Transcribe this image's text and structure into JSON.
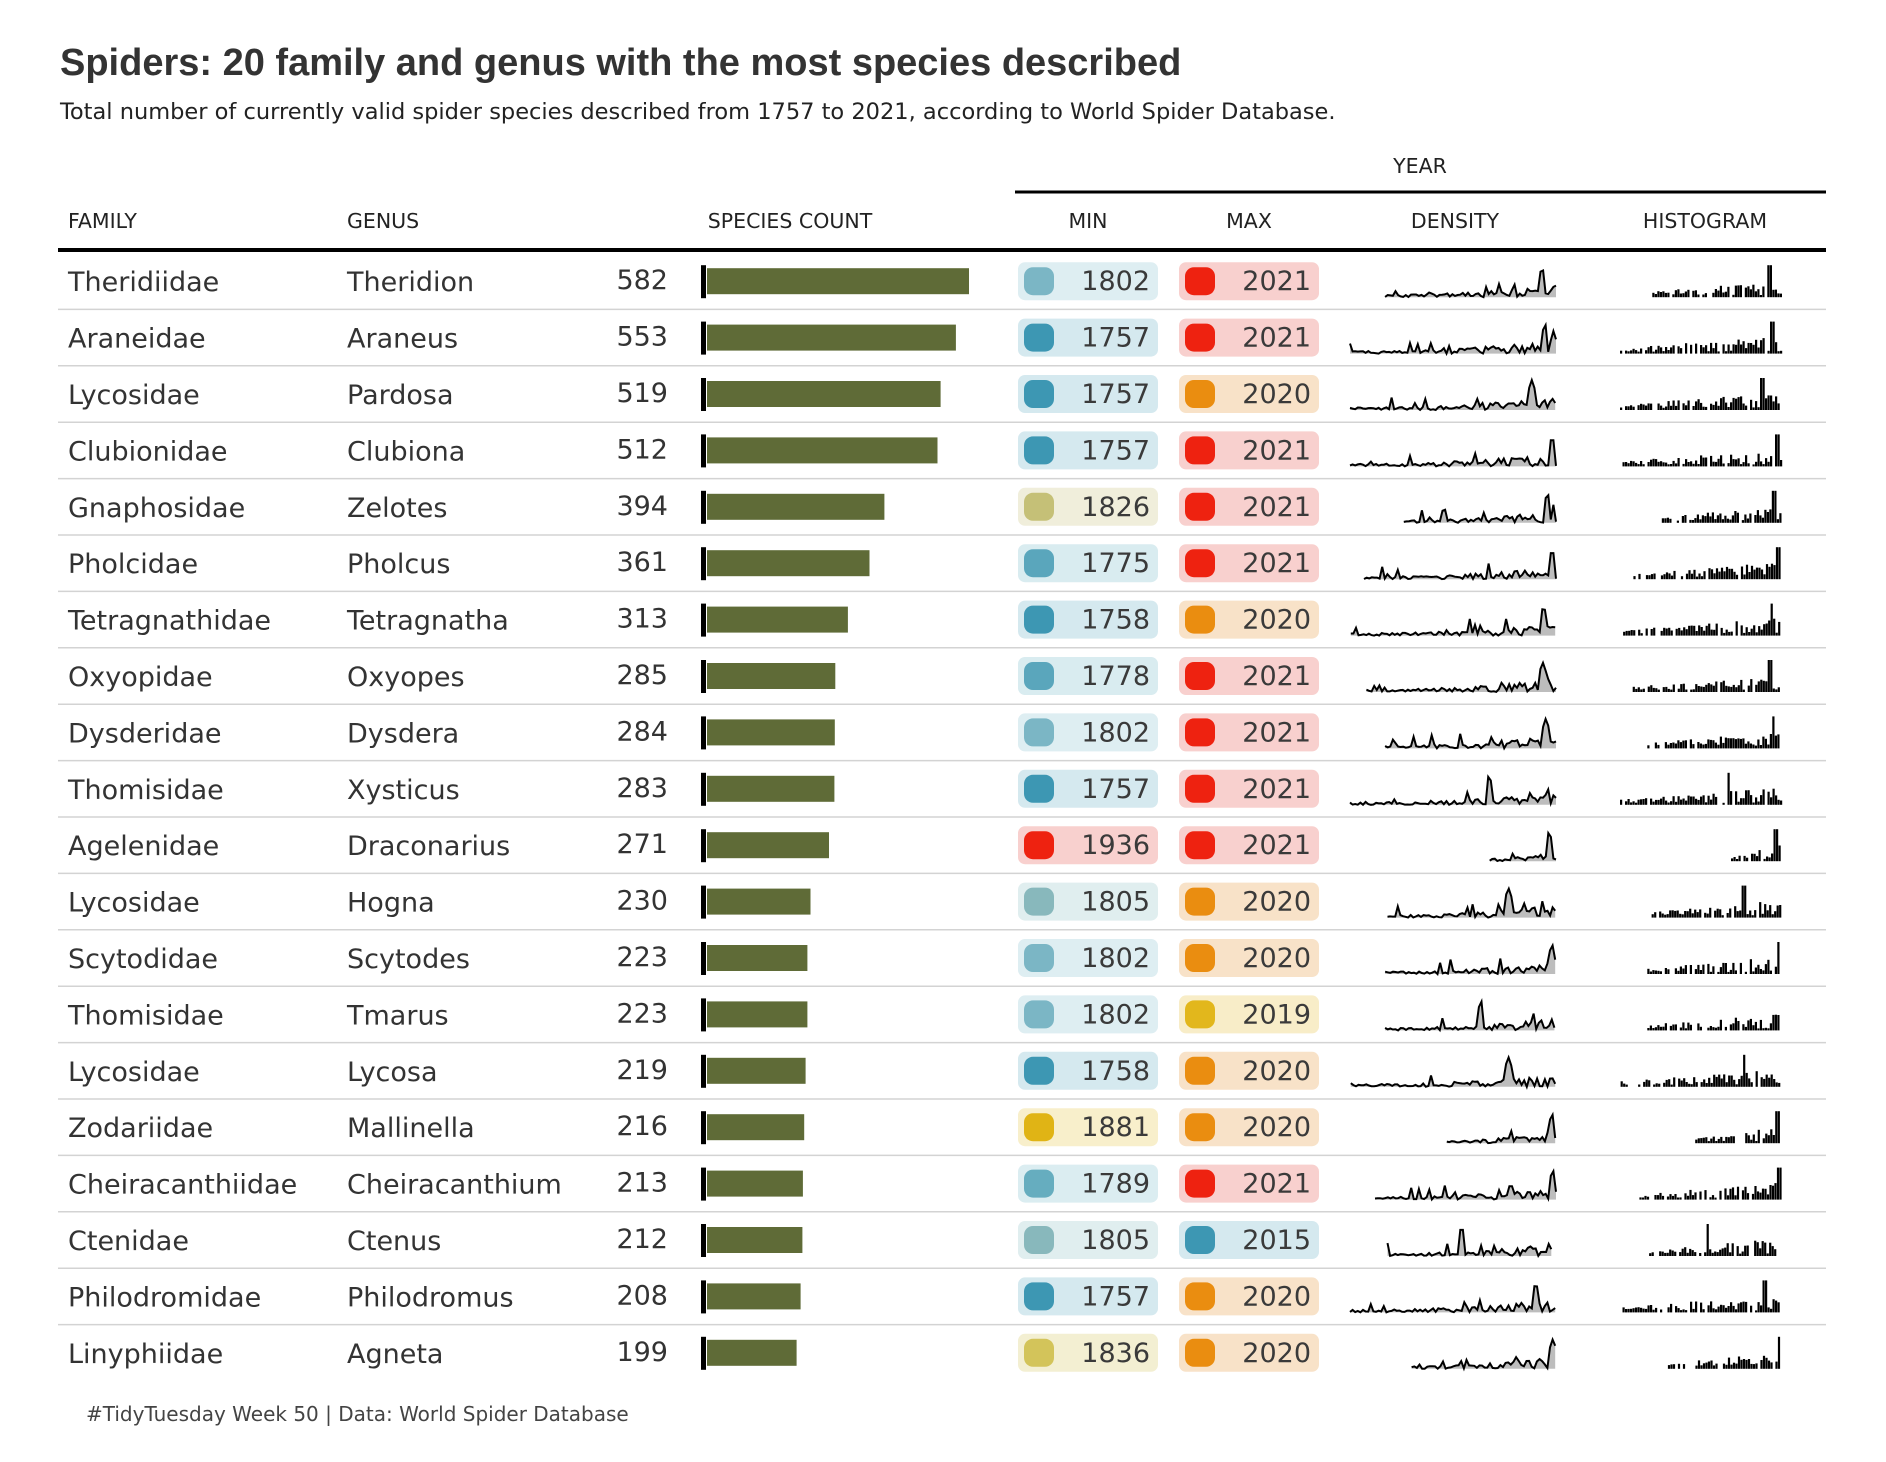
{
  "title": "Spiders: 20 family and genus with the most species described",
  "subtitle": "Total number of currently valid spider species described from 1757 to 2021, according to World Spider Database.",
  "caption": "#TidyTuesday Week 50 | Data: World Spider Database",
  "header": {
    "spanner": "YEAR",
    "family": "FAMILY",
    "genus": "GENUS",
    "species_count": "SPECIES COUNT",
    "min": "MIN",
    "max": "MAX",
    "density": "DENSITY",
    "histogram": "HISTOGRAM"
  },
  "colors": {
    "bar": "#5f6b37",
    "rule": "#000000",
    "row_line": "#d3d3d3",
    "spark": "#000000",
    "density_fill": "#bdbdbd"
  },
  "chart_data": {
    "type": "table",
    "columns": [
      "FAMILY",
      "GENUS",
      "SPECIES COUNT",
      "MIN",
      "MAX",
      "DENSITY",
      "HISTOGRAM"
    ],
    "year_range": [
      1757,
      2021
    ],
    "bar_max": 582,
    "rows": [
      {
        "family": "Theridiidae",
        "genus": "Theridion",
        "count": 582,
        "min": 1802,
        "min_color": "#7bb6c5",
        "min_bg": "#deeef2",
        "max": 2021,
        "max_color": "#ee2210",
        "max_bg": "#f8d0ce",
        "peak": 2003
      },
      {
        "family": "Araneidae",
        "genus": "Araneus",
        "count": 553,
        "min": 1757,
        "min_color": "#3d97b3",
        "min_bg": "#d5e9ef",
        "max": 2021,
        "max_color": "#ee2210",
        "max_bg": "#f8d0ce",
        "peak": 2007
      },
      {
        "family": "Lycosidae",
        "genus": "Pardosa",
        "count": 519,
        "min": 1757,
        "min_color": "#3d97b3",
        "min_bg": "#d5e9ef",
        "max": 2020,
        "max_color": "#ea8d10",
        "max_bg": "#f8e2c8",
        "peak": 1990
      },
      {
        "family": "Clubionidae",
        "genus": "Clubiona",
        "count": 512,
        "min": 1757,
        "min_color": "#3d97b3",
        "min_bg": "#d5e9ef",
        "max": 2021,
        "max_color": "#ee2210",
        "max_bg": "#f8d0ce",
        "peak": 2016
      },
      {
        "family": "Gnaphosidae",
        "genus": "Zelotes",
        "count": 394,
        "min": 1826,
        "min_color": "#c5c077",
        "min_bg": "#f0eedb",
        "max": 2021,
        "max_color": "#ee2210",
        "max_bg": "#f8d0ce",
        "peak": 2010
      },
      {
        "family": "Pholcidae",
        "genus": "Pholcus",
        "count": 361,
        "min": 1775,
        "min_color": "#5aa6bc",
        "min_bg": "#d9ecf0",
        "max": 2021,
        "max_color": "#ee2210",
        "max_bg": "#f8d0ce",
        "peak": 2016
      },
      {
        "family": "Tetragnathidae",
        "genus": "Tetragnatha",
        "count": 313,
        "min": 1758,
        "min_color": "#3d97b3",
        "min_bg": "#d5e9ef",
        "max": 2020,
        "max_color": "#ea8d10",
        "max_bg": "#f8e2c8",
        "peak": 2005
      },
      {
        "family": "Oxyopidae",
        "genus": "Oxyopes",
        "count": 285,
        "min": 1778,
        "min_color": "#5aa6bc",
        "min_bg": "#d9ecf0",
        "max": 2021,
        "max_color": "#ee2210",
        "max_bg": "#f8d0ce",
        "peak": 2004
      },
      {
        "family": "Dysderidae",
        "genus": "Dysdera",
        "count": 284,
        "min": 1802,
        "min_color": "#7bb6c5",
        "min_bg": "#deeef2",
        "max": 2021,
        "max_color": "#ee2210",
        "max_bg": "#f8d0ce",
        "peak": 2008
      },
      {
        "family": "Thomisidae",
        "genus": "Xysticus",
        "count": 283,
        "min": 1757,
        "min_color": "#3d97b3",
        "min_bg": "#d5e9ef",
        "max": 2021,
        "max_color": "#ee2210",
        "max_bg": "#f8d0ce",
        "peak": 1935
      },
      {
        "family": "Agelenidae",
        "genus": "Draconarius",
        "count": 271,
        "min": 1936,
        "min_color": "#ee2210",
        "min_bg": "#f8d0ce",
        "max": 2021,
        "max_color": "#ee2210",
        "max_bg": "#f8d0ce",
        "peak": 2012
      },
      {
        "family": "Lycosidae",
        "genus": "Hogna",
        "count": 230,
        "min": 1805,
        "min_color": "#88b8bc",
        "min_bg": "#e0eeef",
        "max": 2020,
        "max_color": "#ea8d10",
        "max_bg": "#f8e2c8",
        "peak": 1960
      },
      {
        "family": "Scytodidae",
        "genus": "Scytodes",
        "count": 223,
        "min": 1802,
        "min_color": "#7bb6c5",
        "min_bg": "#deeef2",
        "max": 2020,
        "max_color": "#ea8d10",
        "max_bg": "#f8e2c8",
        "peak": 2016
      },
      {
        "family": "Thomisidae",
        "genus": "Tmarus",
        "count": 223,
        "min": 1802,
        "min_color": "#7bb6c5",
        "min_bg": "#deeef2",
        "max": 2019,
        "max_color": "#e2b71c",
        "max_bg": "#f8edc8",
        "peak": 1925
      },
      {
        "family": "Lycosidae",
        "genus": "Lycosa",
        "count": 219,
        "min": 1758,
        "min_color": "#3d97b3",
        "min_bg": "#d5e9ef",
        "max": 2020,
        "max_color": "#ea8d10",
        "max_bg": "#f8e2c8",
        "peak": 1960
      },
      {
        "family": "Zodariidae",
        "genus": "Mallinella",
        "count": 216,
        "min": 1881,
        "min_color": "#e0b415",
        "min_bg": "#f8efcb",
        "max": 2020,
        "max_color": "#ea8d10",
        "max_bg": "#f8e2c8",
        "peak": 2016
      },
      {
        "family": "Cheiracanthiidae",
        "genus": "Cheiracanthium",
        "count": 213,
        "min": 1789,
        "min_color": "#66adbf",
        "min_bg": "#dbedf1",
        "max": 2021,
        "max_color": "#ee2210",
        "max_bg": "#f8d0ce",
        "peak": 2017
      },
      {
        "family": "Ctenidae",
        "genus": "Ctenus",
        "count": 212,
        "min": 1805,
        "min_color": "#88b8bc",
        "min_bg": "#e0eeef",
        "max": 2015,
        "max_color": "#3d97b3",
        "max_bg": "#d5e9ef",
        "peak": 1900
      },
      {
        "family": "Philodromidae",
        "genus": "Philodromus",
        "count": 208,
        "min": 1757,
        "min_color": "#3d97b3",
        "min_bg": "#d5e9ef",
        "max": 2020,
        "max_color": "#ea8d10",
        "max_bg": "#f8e2c8",
        "peak": 1995
      },
      {
        "family": "Linyphiidae",
        "genus": "Agneta",
        "count": 199,
        "min": 1836,
        "min_color": "#d3c45a",
        "min_bg": "#f3efd2",
        "max": 2020,
        "max_color": "#ea8d10",
        "max_bg": "#f8e2c8",
        "peak": 2017
      }
    ]
  }
}
